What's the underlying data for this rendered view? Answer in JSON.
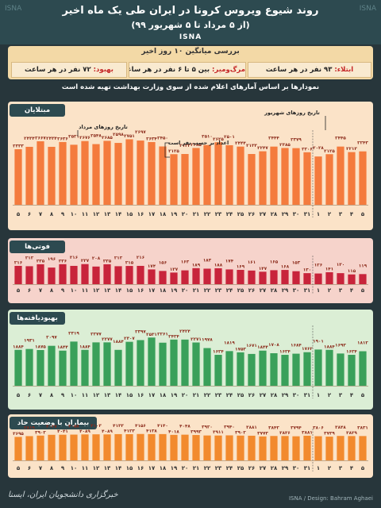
{
  "header": {
    "title": "روند شیوع ویروس کرونا در ایران طی یک ماه اخیر",
    "subtitle": "(از ۵ مرداد تا ۵ شهریور ۹۹)",
    "agency": "ISNA",
    "watermark": "ISNA"
  },
  "summary": {
    "title": "بررسی میانگین ۱۰ روز اخیر",
    "infect_label": "ابتلاء:",
    "infect_value": "۹۳ نفر در هر ساعت",
    "death_label": "مرگ‌ومیر:",
    "death_value": "بین ۵ تا ۶ نفر در هر ساعت",
    "recover_label": "بهبود:",
    "recover_value": "۷۲ نفر در هر ساعت"
  },
  "note": "نمودارها بر اساس آمارهای اعلام شده از سوی وزارت بهداشت تهیه شده است",
  "footer": {
    "left": "خبرگزاری دانشجویان ایران، ایسنا",
    "right": "ISNA / Design: Bahram Aghaei"
  },
  "colors": {
    "infections": "#f47b3d",
    "deaths": "#c8243b",
    "recovered": "#3aa05a",
    "critical": "#f28a2e"
  },
  "chart_data": [
    {
      "type": "bar",
      "title": "مبتلایان",
      "annotation_mordad": "تاریخ روزهای مرداد",
      "annotation_shahrivar": "تاریخ روزهای شهریور",
      "annotation_hourly": "اعداد بر حسب نفر است",
      "categories": [
        "۵",
        "۶",
        "۷",
        "۸",
        "۹",
        "۱۰",
        "۱۱",
        "۱۲",
        "۱۳",
        "۱۴",
        "۱۵",
        "۱۶",
        "۱۷",
        "۱۸",
        "۱۹",
        "۲۰",
        "۲۱",
        "۲۲",
        "۲۳",
        "۲۴",
        "۲۵",
        "۲۶",
        "۲۷",
        "۲۸",
        "۲۹",
        "۳۰",
        "۳۱",
        "۱",
        "۲",
        "۳",
        "۴",
        "۵"
      ],
      "values": [
        2333,
        2434,
        2667,
        2434,
        2636,
        2521,
        2676,
        2548,
        2685,
        2598,
        2751,
        2697,
        2634,
        2450,
        2125,
        2133,
        2385,
        2510,
        2625,
        2501,
        2444,
        2133,
        2247,
        2444,
        2385,
        2379,
        2206,
        2028,
        2125,
        2445,
        2213,
        2243
      ],
      "labels": [
        "۲۳۳۳",
        "۲۴۳۴",
        "۲۶۶۷",
        "۲۴۳۴",
        "۲۶۳۶",
        "۲۵۲۱",
        "۲۶۷۶",
        "۲۵۴۸",
        "۲۶۸۵",
        "۲۵۹۸",
        "۲۷۵۱",
        "۲۶۹۷",
        "۲۶۳۴",
        "۲۴۵۰",
        "۲۱۲۵",
        "۲۱۳۳",
        "۲۳۸۵",
        "۲۵۱۰",
        "۲۶۲۵",
        "۲۵۰۱",
        "۲۴۴۴",
        "۲۱۳۳",
        "۲۲۴۷",
        "۲۴۴۴",
        "۲۳۸۵",
        "۲۳۷۹",
        "۲۲۰۶",
        "۲۰۲۸",
        "۲۱۲۵",
        "۲۴۴۵",
        "۲۲۱۳",
        "۲۲۴۳"
      ],
      "ylim": [
        0,
        3000
      ]
    },
    {
      "type": "bar",
      "title": "فوتی‌ها",
      "categories": [
        "۵",
        "۶",
        "۷",
        "۸",
        "۹",
        "۱۰",
        "۱۱",
        "۱۲",
        "۱۳",
        "۱۴",
        "۱۵",
        "۱۶",
        "۱۷",
        "۱۸",
        "۱۹",
        "۲۰",
        "۲۱",
        "۲۲",
        "۲۳",
        "۲۴",
        "۲۵",
        "۲۶",
        "۲۷",
        "۲۸",
        "۲۹",
        "۳۰",
        "۳۱",
        "۱",
        "۲",
        "۳",
        "۴",
        "۵"
      ],
      "values": [
        216,
        212,
        235,
        196,
        236,
        216,
        237,
        208,
        235,
        212,
        215,
        216,
        174,
        156,
        137,
        163,
        189,
        183,
        188,
        174,
        169,
        161,
        147,
        165,
        168,
        153,
        130,
        126,
        141,
        130,
        115,
        119
      ],
      "labels": [
        "۲۱۶",
        "۲۱۲",
        "۲۳۵",
        "۱۹۶",
        "۲۳۶",
        "۲۱۶",
        "۲۳۷",
        "۲۰۸",
        "۲۳۵",
        "۲۱۲",
        "۲۱۵",
        "۲۱۶",
        "۱۷۴",
        "۱۵۶",
        "۱۳۷",
        "۱۶۳",
        "۱۸۹",
        "۱۸۳",
        "۱۸۸",
        "۱۷۴",
        "۱۶۹",
        "۱۶۱",
        "۱۴۷",
        "۱۶۵",
        "۱۶۸",
        "۱۵۳",
        "۱۳۰",
        "۱۲۶",
        "۱۴۱",
        "۱۳۰",
        "۱۱۵",
        "۱۱۹"
      ],
      "ylim": [
        0,
        300
      ]
    },
    {
      "type": "bar",
      "title": "بهبودیافته‌ها",
      "categories": [
        "۵",
        "۶",
        "۷",
        "۸",
        "۹",
        "۱۰",
        "۱۱",
        "۱۲",
        "۱۳",
        "۱۴",
        "۱۵",
        "۱۶",
        "۱۷",
        "۱۸",
        "۱۹",
        "۲۰",
        "۲۱",
        "۲۲",
        "۲۳",
        "۲۴",
        "۲۵",
        "۲۶",
        "۲۷",
        "۲۸",
        "۲۹",
        "۳۰",
        "۳۱",
        "۱",
        "۲",
        "۳",
        "۴",
        "۵"
      ],
      "values": [
        1884,
        1931,
        1875,
        2097,
        1844,
        2319,
        1884,
        2277,
        2277,
        1884,
        2307,
        2397,
        2531,
        2261,
        2424,
        2424,
        2271,
        1978,
        1624,
        1819,
        1753,
        1671,
        1844,
        1708,
        1624,
        1684,
        1762,
        1901,
        1884,
        1693,
        1624,
        1812
      ],
      "labels": [
        "۱۸۸۴",
        "۱۹۳۱",
        "۱۸۷۵",
        "۲۰۹۷",
        "۱۸۴۴",
        "۲۳۱۹",
        "۱۸۸۴",
        "۲۲۷۷",
        "۲۲۷۷",
        "۱۸۸۴",
        "۲۳۰۷",
        "۲۳۹۷",
        "۲۵۳۱",
        "۲۲۶۱",
        "۲۴۲۴",
        "۲۴۲۴",
        "۲۲۷۱",
        "۱۹۷۸",
        "۱۶۲۴",
        "۱۸۱۹",
        "۱۷۵۳",
        "۱۶۷۱",
        "۱۸۴۴",
        "۱۷۰۸",
        "۱۶۲۴",
        "۱۶۸۴",
        "۱۷۶۲",
        "۱۹۰۱",
        "۱۸۸۴",
        "۱۶۹۳",
        "۱۶۲۴",
        "۱۸۱۲"
      ],
      "ylim": [
        0,
        3000
      ]
    },
    {
      "type": "bar",
      "title": "بیماران با وضعیت حاد",
      "categories": [
        "۵",
        "۶",
        "۷",
        "۸",
        "۹",
        "۱۰",
        "۱۱",
        "۱۲",
        "۱۳",
        "۱۴",
        "۱۵",
        "۱۶",
        "۱۷",
        "۱۸",
        "۱۹",
        "۲۰",
        "۲۱",
        "۲۲",
        "۲۳",
        "۲۴",
        "۲۵",
        "۲۶",
        "۲۷",
        "۲۸",
        "۲۹",
        "۳۰",
        "۳۱",
        "۱",
        "۲",
        "۳",
        "۴",
        "۵"
      ],
      "values": [
        3695,
        3819,
        3902,
        4027,
        4041,
        4058,
        4089,
        4103,
        4089,
        4133,
        4123,
        4156,
        4138,
        4140,
        4018,
        4048,
        3993,
        3920,
        3911,
        3940,
        3902,
        3881,
        3773,
        3842,
        3836,
        3794,
        3881,
        3806,
        3739,
        3848,
        3829,
        3831
      ],
      "labels": [
        "۳۶۹۵",
        "۳۸۱۹",
        "۳۹۰۲",
        "۴۰۲۷",
        "۴۰۴۱",
        "۴۰۵۸",
        "۴۰۸۹",
        "۴۱۰۳",
        "۴۰۸۹",
        "۴۱۳۳",
        "۴۱۲۳",
        "۴۱۵۶",
        "۴۱۳۸",
        "۴۱۴۰",
        "۴۰۱۸",
        "۴۰۴۸",
        "۳۹۹۳",
        "۳۹۲۰",
        "۳۹۱۱",
        "۳۹۴۰",
        "۳۹۰۲",
        "۳۸۸۱",
        "۳۷۷۳",
        "۳۸۴۲",
        "۳۸۳۶",
        "۳۷۹۴",
        "۳۸۸۱",
        "۳۸۰۶",
        "۳۷۳۹",
        "۳۸۴۸",
        "۳۸۲۹",
        "۳۸۳۱"
      ],
      "ylim": [
        0,
        4500
      ]
    }
  ]
}
